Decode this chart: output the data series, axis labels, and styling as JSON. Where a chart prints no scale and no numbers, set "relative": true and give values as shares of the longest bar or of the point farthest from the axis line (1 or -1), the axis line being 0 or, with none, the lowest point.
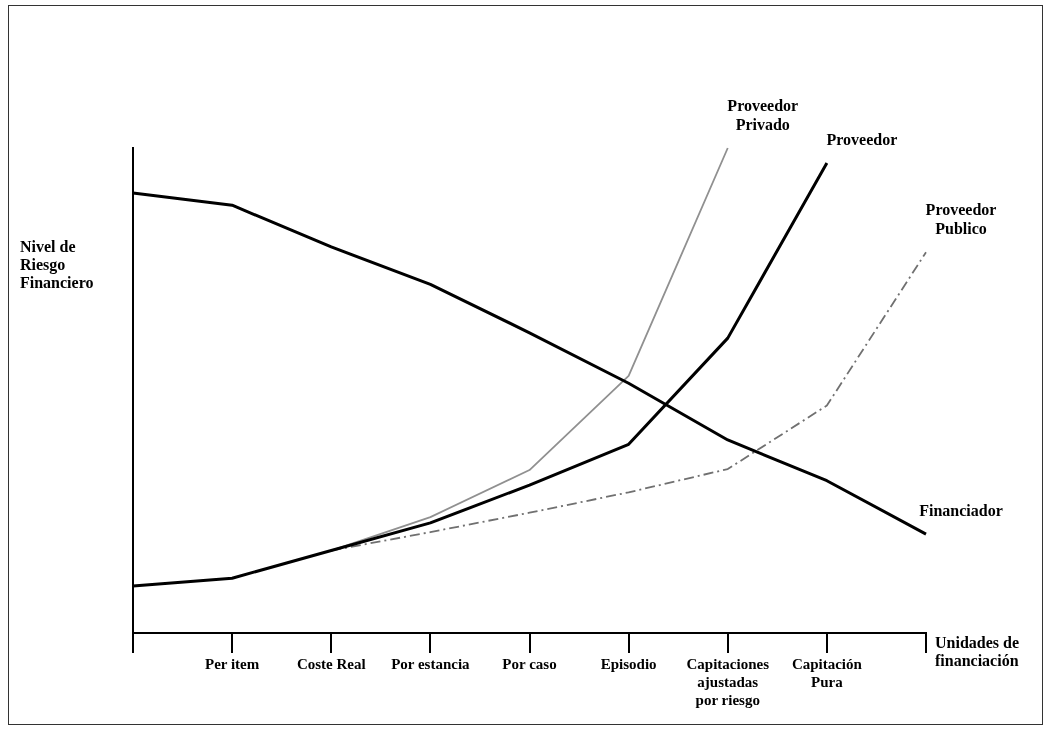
{
  "chart_data": {
    "type": "line",
    "relative": true,
    "xlabel": "Unidades de financiación",
    "ylabel": "Nivel de Riesgo Financiero",
    "categories": [
      null,
      "Per item",
      "Coste Real",
      "Por estancia",
      "Por caso",
      "Episodio",
      "Capitaciones\najustadas\npor riesgo",
      "Capitación\nPura",
      null
    ],
    "grid": false,
    "legend": false,
    "marker": "none",
    "series": [
      {
        "name": "Financiador",
        "color": "#000000",
        "line_style": "solid",
        "values": [
          0.907,
          0.882,
          0.796,
          0.719,
          0.619,
          0.515,
          0.398,
          0.314,
          0.204
        ]
      },
      {
        "name": "Proveedor",
        "color": "#000000",
        "line_style": "solid",
        "values": [
          0.097,
          0.113,
          0.17,
          0.227,
          0.305,
          0.389,
          0.608,
          0.969,
          null
        ]
      },
      {
        "name": "Proveedor Privado",
        "color": "#909090",
        "line_style": "solid",
        "values": [
          null,
          null,
          0.17,
          0.239,
          0.336,
          0.53,
          1.0,
          null,
          null
        ]
      },
      {
        "name": "Proveedor Publico",
        "color": "#707070",
        "line_style": "dashed",
        "values": [
          null,
          null,
          0.17,
          0.208,
          0.248,
          0.29,
          0.338,
          0.469,
          0.785
        ]
      }
    ]
  }
}
